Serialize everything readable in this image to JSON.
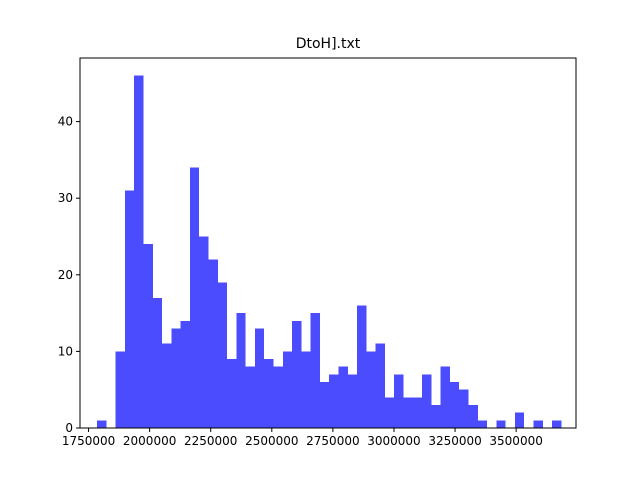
{
  "chart_data": {
    "type": "bar",
    "title": "DtoH].txt",
    "xlabel": "",
    "ylabel": "",
    "xlim": [
      1715000,
      3745000
    ],
    "ylim": [
      0,
      48.3
    ],
    "bin_start": 1785000,
    "bin_width": 38000,
    "bar_color": "#0000ff",
    "bar_opacity": 0.7,
    "grid": false,
    "legend": "none",
    "x_ticks": [
      1750000,
      2000000,
      2250000,
      2500000,
      2750000,
      3000000,
      3250000,
      3500000
    ],
    "x_tick_labels": [
      "1750000",
      "2000000",
      "2250000",
      "2500000",
      "2750000",
      "3000000",
      "3250000",
      "3500000"
    ],
    "y_ticks": [
      0,
      10,
      20,
      30,
      40
    ],
    "y_tick_labels": [
      "0",
      "10",
      "20",
      "30",
      "40"
    ],
    "values": [
      1,
      0,
      10,
      31,
      46,
      24,
      17,
      11,
      13,
      14,
      34,
      25,
      22,
      19,
      9,
      15,
      8,
      13,
      9,
      8,
      10,
      14,
      10,
      15,
      6,
      7,
      8,
      7,
      16,
      10,
      11,
      4,
      7,
      4,
      4,
      7,
      3,
      8,
      6,
      5,
      3,
      1,
      0,
      1,
      0,
      2,
      0,
      1,
      0,
      1
    ]
  }
}
